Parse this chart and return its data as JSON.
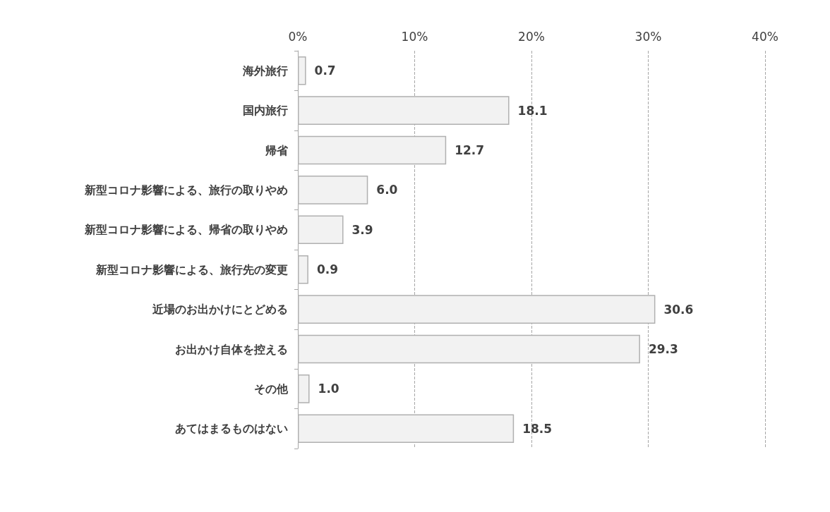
{
  "chart_data": {
    "type": "bar",
    "orientation": "horizontal",
    "categories": [
      "海外旅行",
      "国内旅行",
      "帰省",
      "新型コロナ影響による、旅行の取りやめ",
      "新型コロナ影響による、帰省の取りやめ",
      "新型コロナ影響による、旅行先の変更",
      "近場のお出かけにとどめる",
      "お出かけ自体を控える",
      "その他",
      "あてはまるものはない"
    ],
    "values": [
      0.7,
      18.1,
      12.7,
      6.0,
      3.9,
      0.9,
      30.6,
      29.3,
      1.0,
      18.5
    ],
    "value_labels": [
      "0.7",
      "18.1",
      "12.7",
      "6.0",
      "3.9",
      "0.9",
      "30.6",
      "29.3",
      "1.0",
      "18.5"
    ],
    "color": "#f2f2f2",
    "xlim": [
      0,
      40
    ],
    "xticks": [
      {
        "value": 0,
        "label": "0%"
      },
      {
        "value": 10,
        "label": "10%"
      },
      {
        "value": 20,
        "label": "20%"
      },
      {
        "value": 30,
        "label": "30%"
      },
      {
        "value": 40,
        "label": "40%"
      }
    ],
    "grid": "x"
  }
}
